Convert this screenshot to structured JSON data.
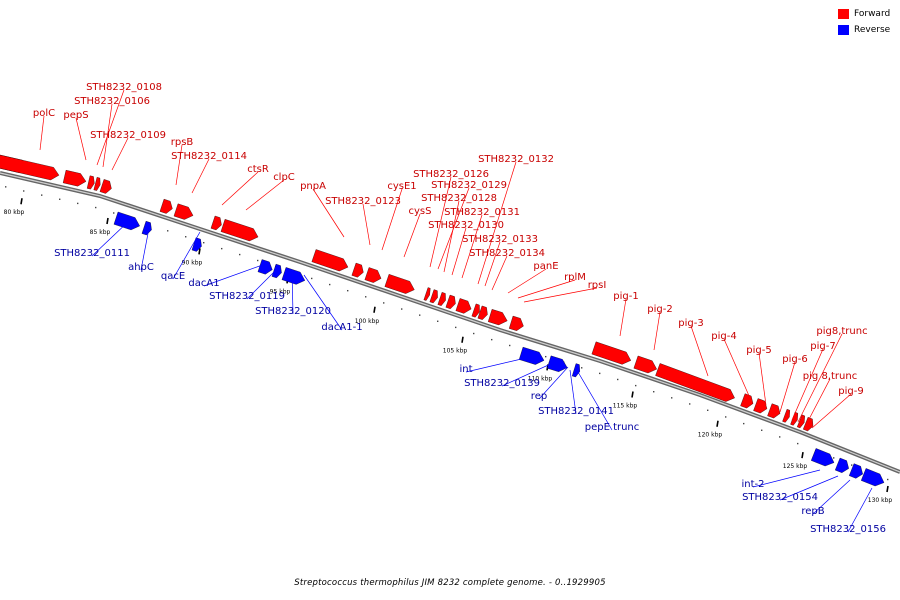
{
  "legend": [
    {
      "label": "Forward",
      "color": "#ff0000"
    },
    {
      "label": "Reverse",
      "color": "#0000ff"
    }
  ],
  "caption": "Streptococcus thermophilus JIM 8232 complete genome. - 0..1929905",
  "colors": {
    "forward": "#ff0000",
    "reverse": "#0000ff",
    "forward_label": "#c80000",
    "reverse_label": "#0000a0",
    "backbone": "#666666"
  },
  "scale_ticks": [
    "80 kbp",
    "85 kbp",
    "90 kbp",
    "95 kbp",
    "100 kbp",
    "105 kbp",
    "110 kbp",
    "115 kbp",
    "120 kbp",
    "125 kbp",
    "130 kbp"
  ],
  "forward_genes": [
    "polC",
    "pepS",
    "STH8232_0108",
    "STH8232_0106",
    "STH8232_0109",
    "rpsB",
    "STH8232_0114",
    "ctsR",
    "clpC",
    "pnpA",
    "STH8232_0123",
    "cysE1",
    "cysS",
    "STH8232_0126",
    "STH8232_0129",
    "STH8232_0128",
    "STH8232_0130",
    "STH8232_0131",
    "STH8232_0132",
    "STH8232_0133",
    "STH8232_0134",
    "panE",
    "rplM",
    "rpsI",
    "pig-1",
    "pig-2",
    "pig-3",
    "pig-4",
    "pig-5",
    "pig-6",
    "pig-7",
    "pig8,trunc",
    "pig 8,trunc",
    "pig-9"
  ],
  "reverse_genes": [
    "STH8232_0111",
    "ahpC",
    "qacE",
    "dacA1",
    "STH8232_0119",
    "STH8232_0120",
    "dacA1-1",
    "int",
    "STH8232_0139",
    "rep",
    "STH8232_0141",
    "pepE trunc",
    "int-2",
    "STH8232_0154",
    "repB",
    "STH8232_0156"
  ]
}
